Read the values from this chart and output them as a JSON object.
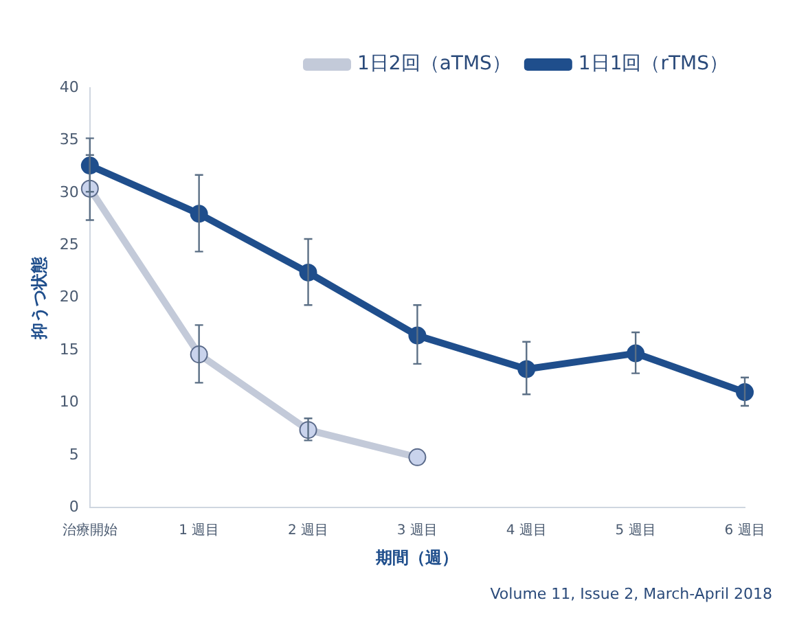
{
  "chart_data": {
    "type": "line",
    "xlabel": "期間（週）",
    "ylabel": "抑うつ状態",
    "categories": [
      "治療開始",
      "1 週目",
      "2 週目",
      "3 週目",
      "4 週目",
      "5 週目",
      "6 週目"
    ],
    "series": [
      {
        "name": "1日2回（aTMS）",
        "color": "#c3cad9",
        "values": [
          30.4,
          14.6,
          7.4,
          4.8,
          null,
          null,
          null
        ],
        "errors": [
          [
            27.4,
            33.6
          ],
          [
            11.9,
            17.4
          ],
          [
            6.4,
            8.5
          ],
          null,
          null,
          null,
          null
        ]
      },
      {
        "name": "1日1回（rTMS）",
        "color": "#1f4e8c",
        "values": [
          32.6,
          28.0,
          22.4,
          16.4,
          13.2,
          14.7,
          11.0
        ],
        "errors": [
          [
            30.1,
            35.2
          ],
          [
            24.4,
            31.7
          ],
          [
            19.3,
            25.6
          ],
          [
            13.7,
            19.3
          ],
          [
            10.8,
            15.8
          ],
          [
            12.8,
            16.7
          ],
          [
            9.7,
            12.4
          ]
        ]
      }
    ],
    "ylim": [
      0,
      40
    ],
    "yticks": [
      0,
      5,
      10,
      15,
      20,
      25,
      30,
      35,
      40
    ],
    "grid": false,
    "legend": "top right",
    "marker": "circle",
    "line_style": "solid",
    "annotations": [
      "Volume 11, Issue 2, March-April 2018"
    ]
  }
}
